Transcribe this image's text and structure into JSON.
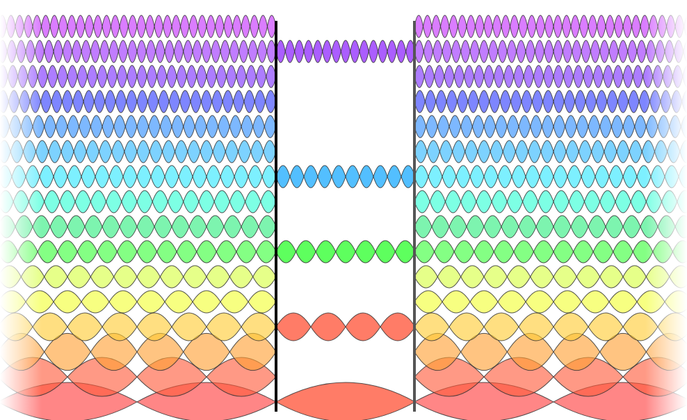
{
  "diagram": {
    "kind": "standing-wave-modes",
    "modes": [
      {
        "n": 1,
        "color": "#ff3b3b"
      },
      {
        "n": 2,
        "color": "#ff5a3a"
      },
      {
        "n": 3,
        "color": "#ffa033"
      },
      {
        "n": 4,
        "color": "#ffcc33"
      },
      {
        "n": 5,
        "color": "#f2ff33"
      },
      {
        "n": 6,
        "color": "#d6ff40"
      },
      {
        "n": 7,
        "color": "#38ff38"
      },
      {
        "n": 8,
        "color": "#2dee7e"
      },
      {
        "n": 9,
        "color": "#2dffd4"
      },
      {
        "n": 10,
        "color": "#2de6ff"
      },
      {
        "n": 11,
        "color": "#2db6ff"
      },
      {
        "n": 12,
        "color": "#2d8cff"
      },
      {
        "n": 13,
        "color": "#2f3cff"
      },
      {
        "n": 14,
        "color": "#7a2dff"
      },
      {
        "n": 15,
        "color": "#9b2dff"
      },
      {
        "n": 16,
        "color": "#c42dff"
      }
    ],
    "central_modes": [
      1,
      4,
      7,
      10,
      15
    ],
    "central_colors": {
      "1": "#ff6e57",
      "4": "#ff6e57",
      "7": "#4dff4d",
      "10": "#40b8ff",
      "15": "#a24dff"
    },
    "outline_color": "#333333",
    "left_wall_color": "#000000",
    "right_wall_color": "#555555",
    "edge_fade_color": "#ffffff"
  }
}
